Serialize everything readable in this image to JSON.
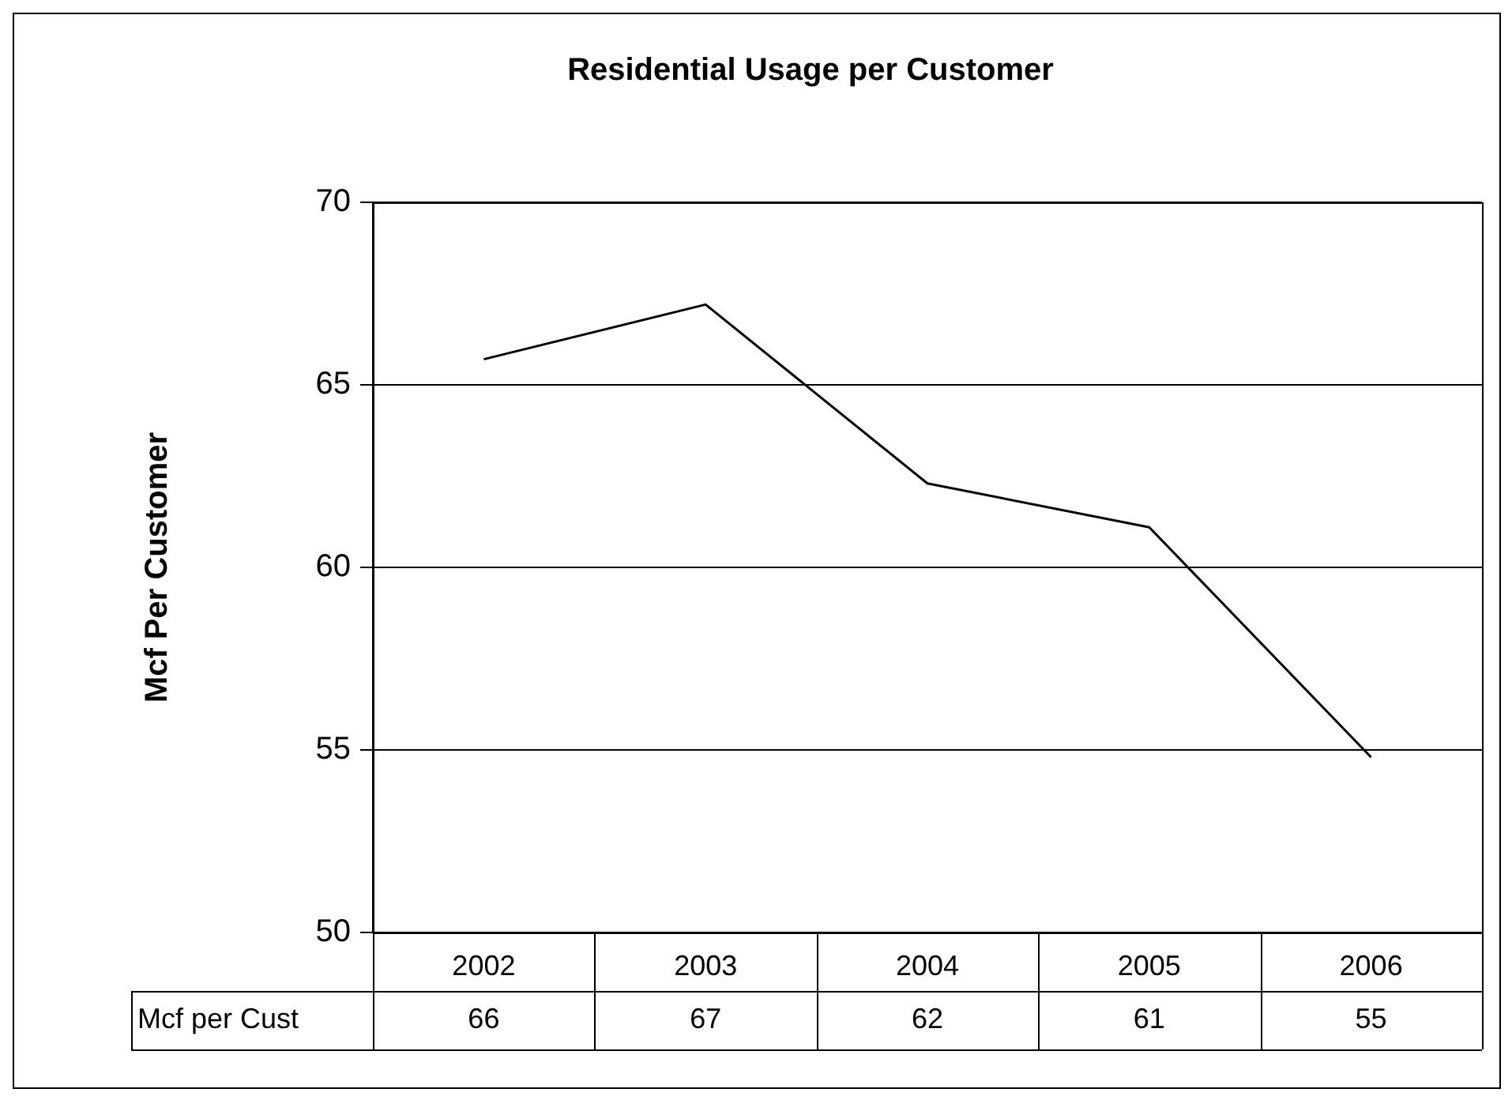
{
  "chart_data": {
    "type": "line",
    "title": "Residential Usage per Customer",
    "ylabel": "Mcf Per Customer",
    "categories": [
      "2002",
      "2003",
      "2004",
      "2005",
      "2006"
    ],
    "series": [
      {
        "name": "Mcf per Cust",
        "color": "#000000",
        "values": [
          65.7,
          67.2,
          62.3,
          61.1,
          54.8
        ],
        "value_labels": [
          "66",
          "67",
          "62",
          "61",
          "55"
        ]
      }
    ],
    "ylim": [
      50,
      70
    ],
    "yticks": [
      50,
      55,
      60,
      65,
      70
    ],
    "grid": "y",
    "legend": "bottom left",
    "marker": "none",
    "line_style": "solid"
  }
}
